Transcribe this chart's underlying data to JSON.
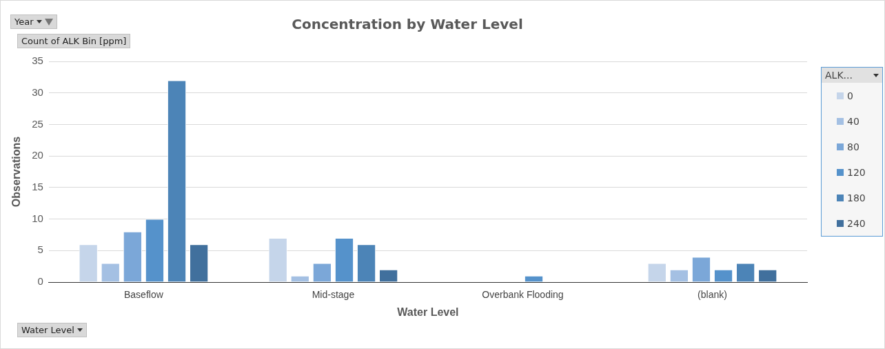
{
  "chart_data": {
    "type": "bar",
    "title": "Concentration by Water Level",
    "xlabel": "Water Level",
    "ylabel": "Observations",
    "legend_title": "ALK...",
    "annotations": [
      "Year",
      "Count of ALK Bin [ppm]",
      "Water Level"
    ],
    "categories": [
      "Baseflow",
      "Mid-stage",
      "Overbank Flooding",
      "(blank)"
    ],
    "series": [
      {
        "name": "0",
        "color": "#c5d5ea",
        "values": [
          6,
          7,
          null,
          3
        ]
      },
      {
        "name": "40",
        "color": "#a4c0e3",
        "values": [
          3,
          1,
          null,
          2
        ]
      },
      {
        "name": "80",
        "color": "#7ba7d8",
        "values": [
          8,
          3,
          null,
          4
        ]
      },
      {
        "name": "120",
        "color": "#5592cb",
        "values": [
          10,
          7,
          1,
          2
        ]
      },
      {
        "name": "180",
        "color": "#4c84b7",
        "values": [
          32,
          6,
          null,
          3
        ]
      },
      {
        "name": "240",
        "color": "#41709d",
        "values": [
          6,
          2,
          null,
          2
        ]
      }
    ],
    "ylim": [
      0,
      35
    ],
    "yticks": [
      0,
      5,
      10,
      15,
      20,
      25,
      30,
      35
    ],
    "grid": "y",
    "legend": "right"
  }
}
